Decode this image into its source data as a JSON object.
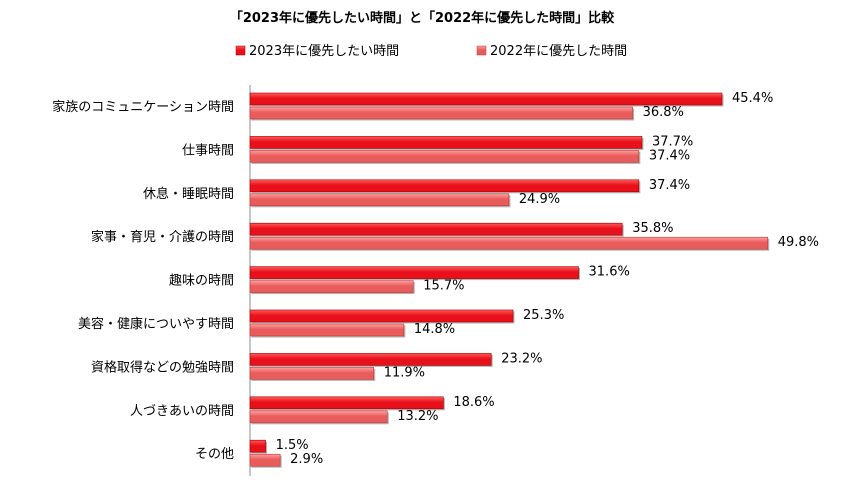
{
  "chart_data": {
    "type": "bar",
    "orientation": "horizontal",
    "title": "「2023年に優先したい時間」と「2022年に優先した時間」比較",
    "categories": [
      "家族のコミュニケーション時間",
      "仕事時間",
      "休息・睡眠時間",
      "家事・育児・介護の時間",
      "趣味の時間",
      "美容・健康についやす時間",
      "資格取得などの勉強時間",
      "人づきあいの時間",
      "その他"
    ],
    "series": [
      {
        "name": "2023年に優先したい時間",
        "values": [
          45.4,
          37.7,
          37.4,
          35.8,
          31.6,
          25.3,
          23.2,
          18.6,
          1.5
        ],
        "labels": [
          "45.4%",
          "37.7%",
          "37.4%",
          "35.8%",
          "31.6%",
          "25.3%",
          "23.2%",
          "18.6%",
          "1.5%"
        ],
        "color": "#e8111b",
        "color_light": "#ff5a5a"
      },
      {
        "name": "2022年に優先した時間",
        "values": [
          36.8,
          37.4,
          24.9,
          49.8,
          15.7,
          14.8,
          11.9,
          13.2,
          2.9
        ],
        "labels": [
          "36.8%",
          "37.4%",
          "24.9%",
          "49.8%",
          "15.7%",
          "14.8%",
          "11.9%",
          "13.2%",
          "2.9%"
        ],
        "color": "#e95c5c",
        "color_light": "#ff9f9f"
      }
    ],
    "xlim": [
      0,
      60
    ],
    "legend_position": "top",
    "grid": false
  }
}
